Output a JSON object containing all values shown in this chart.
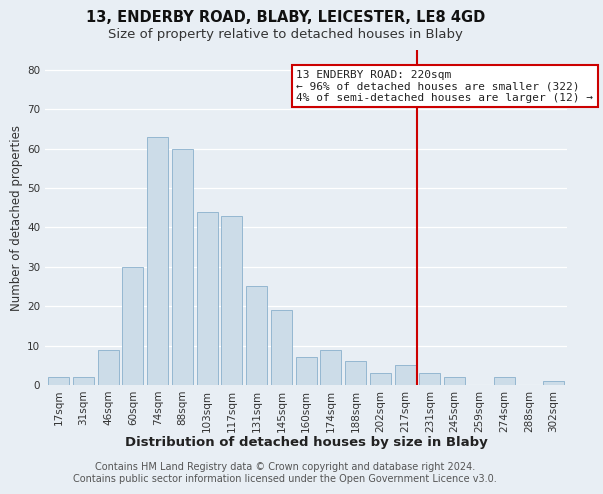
{
  "title": "13, ENDERBY ROAD, BLABY, LEICESTER, LE8 4GD",
  "subtitle": "Size of property relative to detached houses in Blaby",
  "xlabel": "Distribution of detached houses by size in Blaby",
  "ylabel": "Number of detached properties",
  "bar_labels": [
    "17sqm",
    "31sqm",
    "46sqm",
    "60sqm",
    "74sqm",
    "88sqm",
    "103sqm",
    "117sqm",
    "131sqm",
    "145sqm",
    "160sqm",
    "174sqm",
    "188sqm",
    "202sqm",
    "217sqm",
    "231sqm",
    "245sqm",
    "259sqm",
    "274sqm",
    "288sqm",
    "302sqm"
  ],
  "bar_values": [
    2,
    2,
    9,
    30,
    63,
    60,
    44,
    43,
    25,
    19,
    7,
    9,
    6,
    3,
    5,
    3,
    2,
    0,
    2,
    0,
    1
  ],
  "bar_color": "#ccdce8",
  "bar_edge_color": "#8ab0cc",
  "vline_x_index": 14,
  "vline_color": "#cc0000",
  "ylim": [
    0,
    85
  ],
  "yticks": [
    0,
    10,
    20,
    30,
    40,
    50,
    60,
    70,
    80
  ],
  "annotation_title": "13 ENDERBY ROAD: 220sqm",
  "annotation_line1": "← 96% of detached houses are smaller (322)",
  "annotation_line2": "4% of semi-detached houses are larger (12) →",
  "annotation_box_color": "#ffffff",
  "annotation_border_color": "#cc0000",
  "footnote1": "Contains HM Land Registry data © Crown copyright and database right 2024.",
  "footnote2": "Contains public sector information licensed under the Open Government Licence v3.0.",
  "bg_color": "#e8eef4",
  "grid_color": "#ffffff",
  "title_fontsize": 10.5,
  "subtitle_fontsize": 9.5,
  "xlabel_fontsize": 9.5,
  "ylabel_fontsize": 8.5,
  "tick_fontsize": 7.5,
  "annotation_fontsize": 8,
  "footnote_fontsize": 7
}
